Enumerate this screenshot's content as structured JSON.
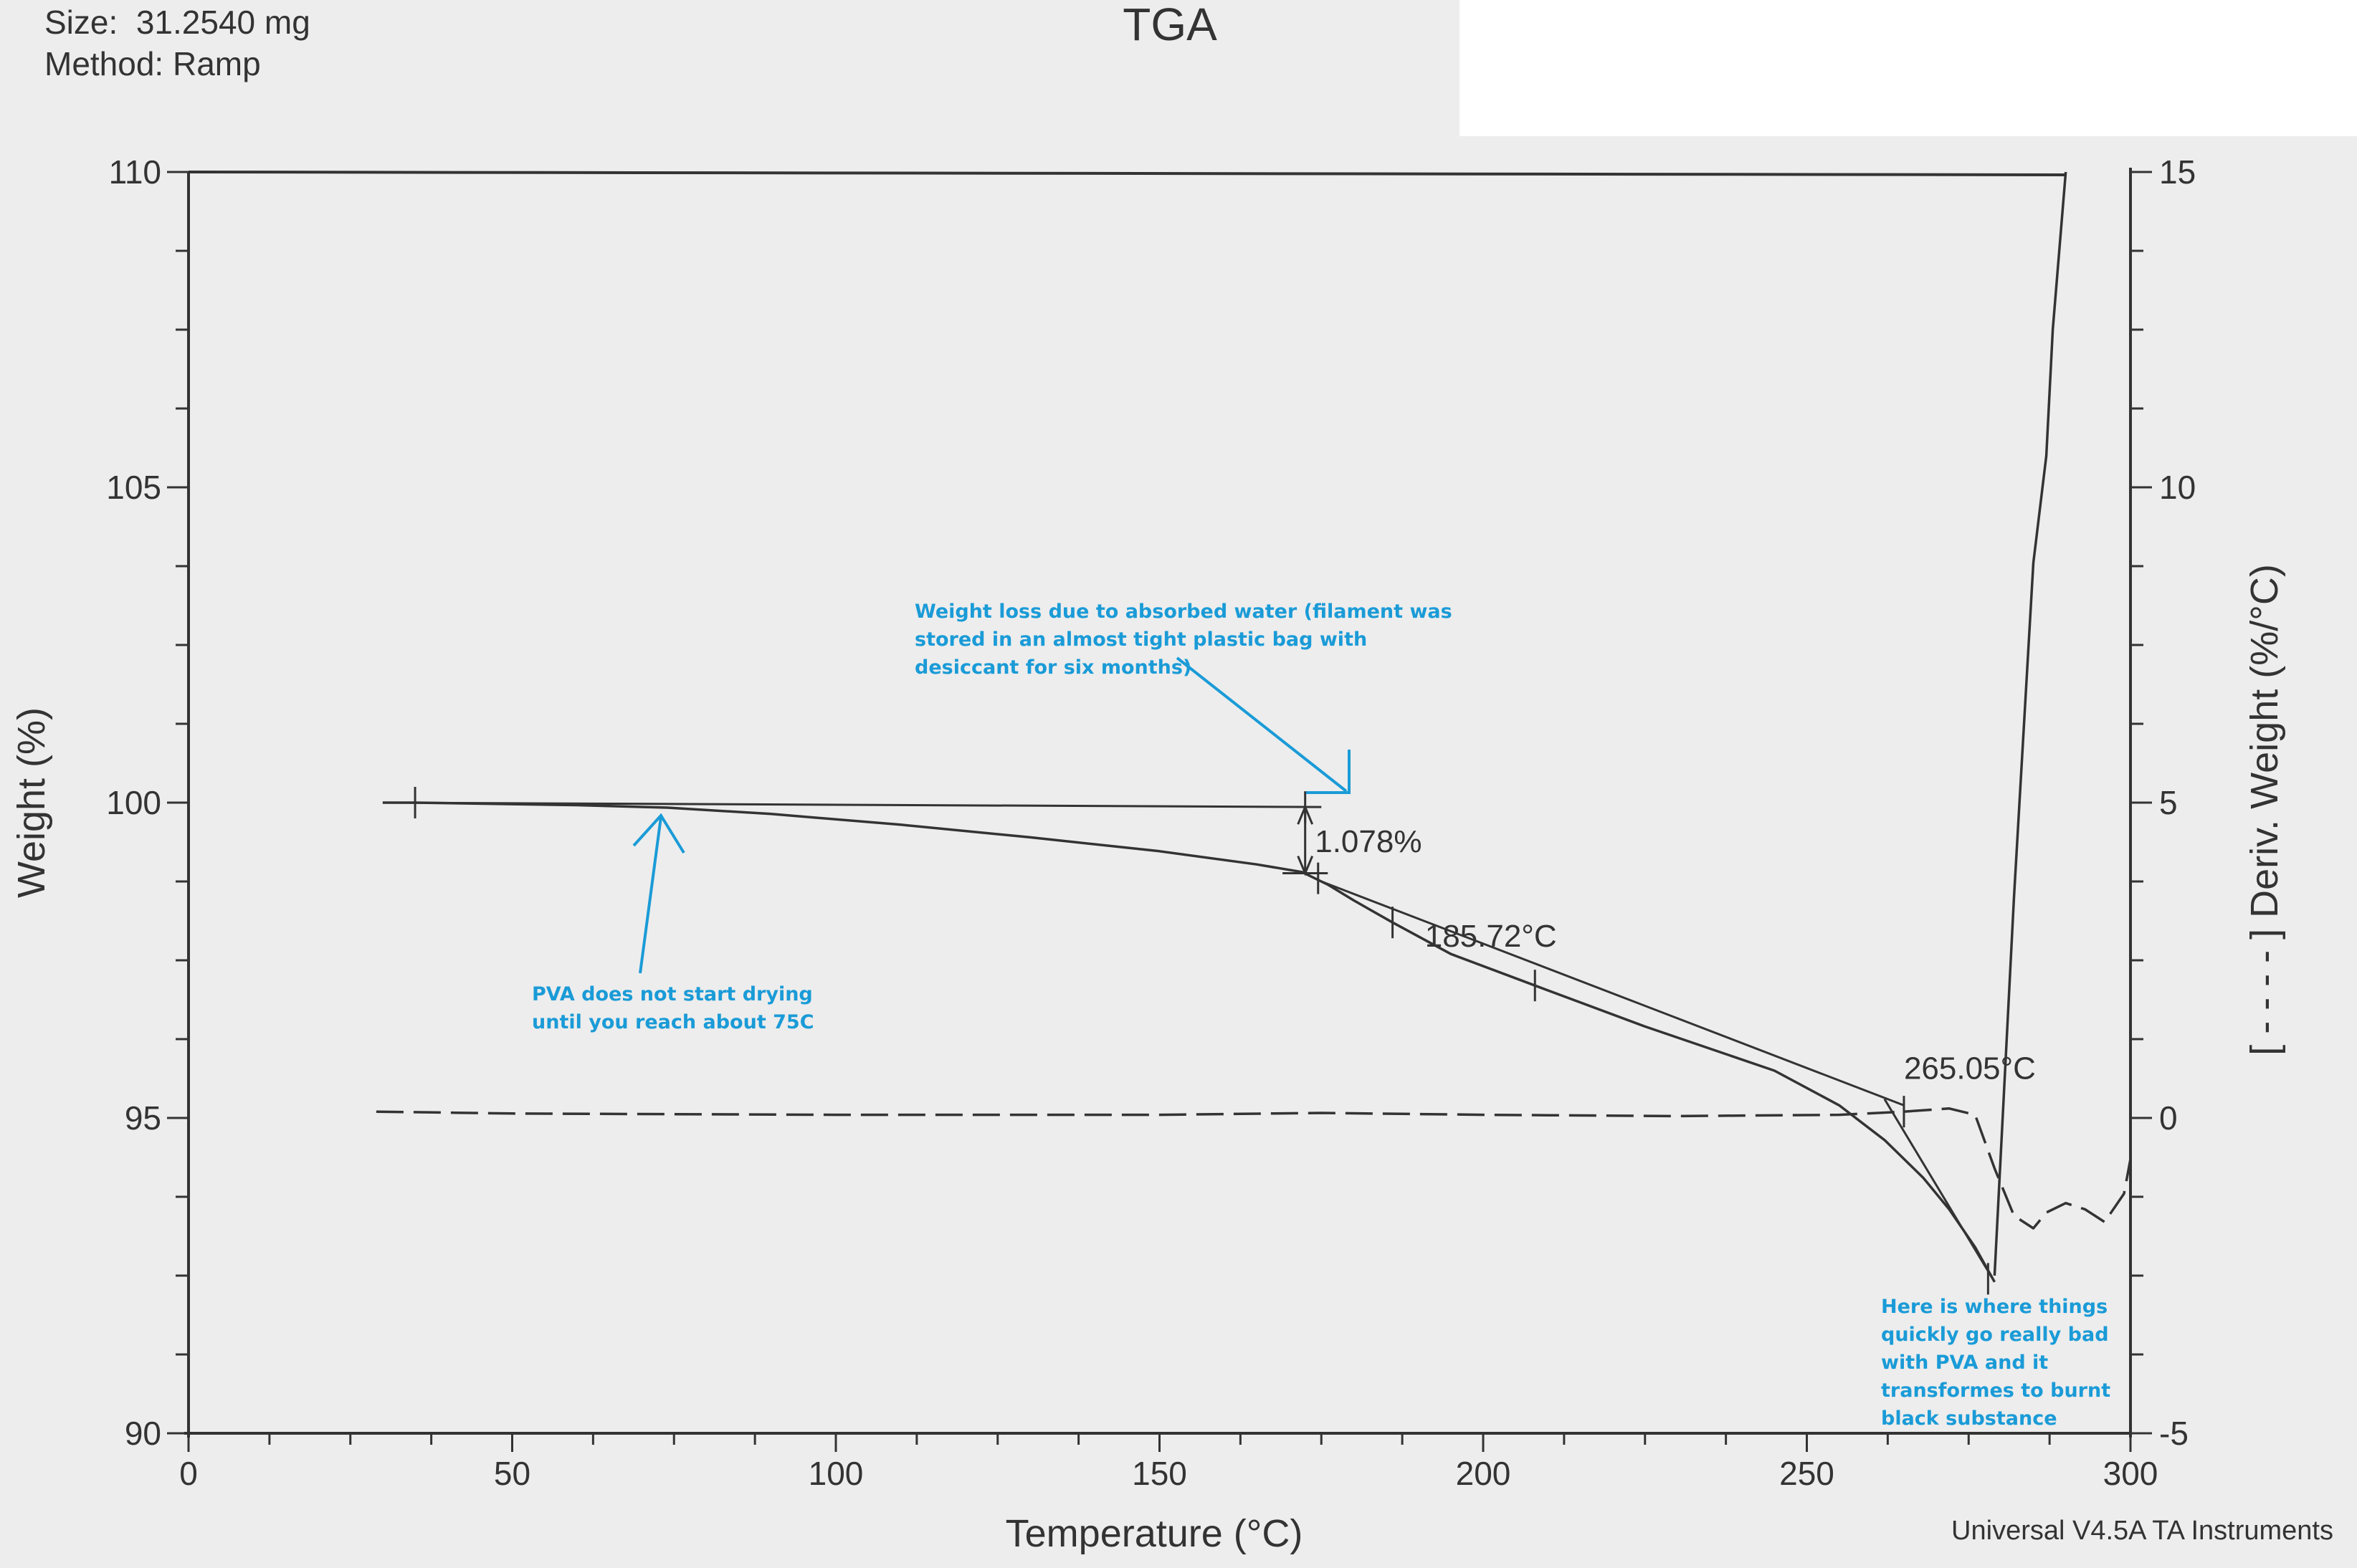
{
  "header": {
    "size_label": "Size:  31.2540 mg",
    "method_label": "Method: Ramp"
  },
  "footer": {
    "software": "Universal V4.5A TA Instruments"
  },
  "colors": {
    "background": "#ededed",
    "ink": "#333333",
    "note_blue": "#1a9bd7"
  },
  "chart_data": {
    "type": "line",
    "title": "TGA",
    "xlabel": "Temperature (°C)",
    "ylabel": "Weight (%)",
    "y2label": "[ - - - - ] Deriv. Weight (%/°C)",
    "xlim": [
      0,
      300
    ],
    "ylim": [
      90,
      110
    ],
    "y2lim": [
      -5,
      15
    ],
    "x_ticks": [
      0,
      50,
      100,
      150,
      200,
      250,
      300
    ],
    "y_ticks": [
      90,
      95,
      100,
      105,
      110
    ],
    "y2_ticks": [
      -5,
      0,
      5,
      10,
      15
    ],
    "grid": false,
    "series": [
      {
        "axis": "left",
        "style": "solid",
        "x": [
          30,
          35,
          60,
          74,
          90,
          110,
          130,
          150,
          165,
          172,
          176,
          180,
          186,
          195,
          208,
          225,
          245,
          255,
          262,
          268,
          272,
          276,
          279
        ],
        "y": [
          100.0,
          100.0,
          99.96,
          99.92,
          99.82,
          99.65,
          99.45,
          99.23,
          99.02,
          98.9,
          98.7,
          98.45,
          98.1,
          97.6,
          97.1,
          96.45,
          95.75,
          95.2,
          94.65,
          94.05,
          93.55,
          92.95,
          92.4
        ]
      },
      {
        "axis": "right",
        "style": "dashed",
        "x": [
          29,
          50,
          100,
          150,
          175,
          200,
          230,
          255,
          265,
          272,
          276,
          279,
          282,
          285,
          287,
          290,
          293,
          296,
          299,
          300
        ],
        "y": [
          0.1,
          0.07,
          0.05,
          0.05,
          0.08,
          0.05,
          0.03,
          0.05,
          0.1,
          0.15,
          0.05,
          -0.8,
          -1.55,
          -1.75,
          -1.5,
          -1.35,
          -1.45,
          -1.65,
          -1.2,
          -0.65
        ]
      },
      {
        "axis": "right",
        "style": "solid",
        "x": [
          279,
          282,
          285,
          287,
          288,
          290
        ],
        "y": [
          -2.5,
          3.5,
          8.8,
          10.5,
          12.5,
          15.0
        ]
      }
    ],
    "annotations": [
      {
        "text": "1.078%",
        "x": 174,
        "y": 99.4
      },
      {
        "text": "185.72°C",
        "x": 191,
        "y": 97.9
      },
      {
        "text": "265.05°C",
        "x": 265,
        "y": 95.8
      }
    ],
    "notes": [
      {
        "lines": [
          "Weight loss due to absorbed water (filament was",
          "stored in an almost tight plastic bag with",
          "desiccant for six months)"
        ]
      },
      {
        "lines": [
          "PVA does not start drying",
          "until you reach about 75C"
        ]
      },
      {
        "lines": [
          "Here is where things",
          "quickly go really bad",
          "with PVA and it",
          "transformes to burnt",
          "black substance"
        ]
      }
    ]
  }
}
